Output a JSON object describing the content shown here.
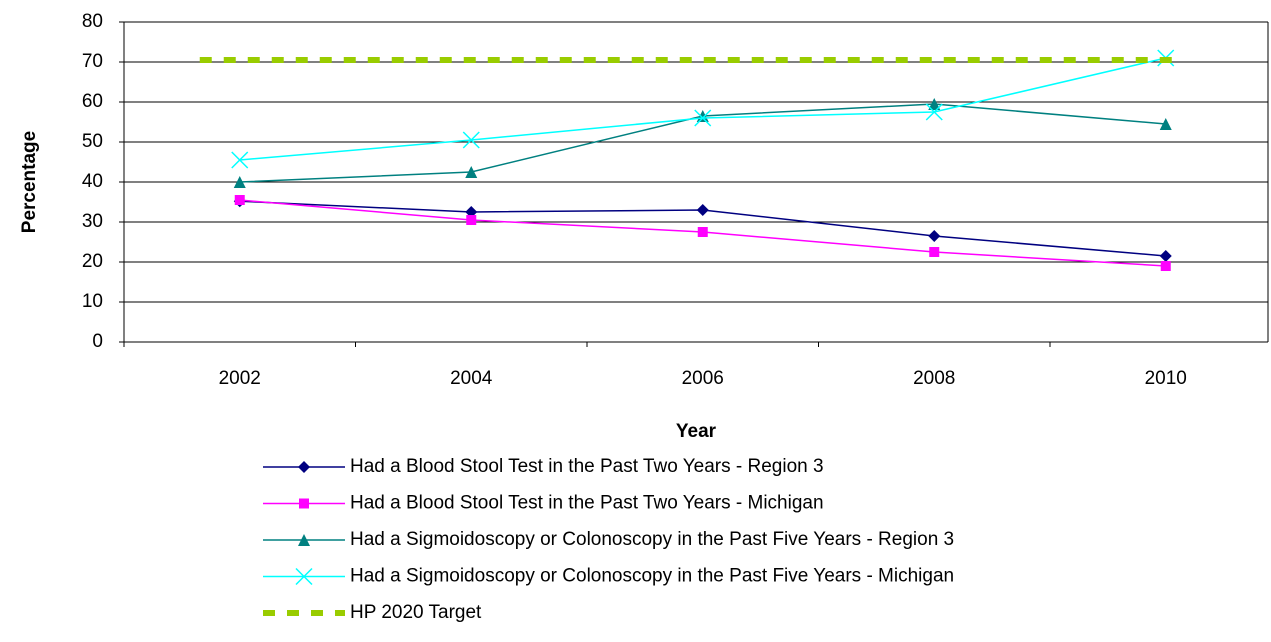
{
  "chart_data": {
    "type": "line",
    "x_label": "Year",
    "y_label": "Percentage",
    "categories": [
      "2002",
      "2004",
      "2006",
      "2008",
      "2010"
    ],
    "ylim": [
      0,
      80
    ],
    "yticks": [
      0,
      10,
      20,
      30,
      40,
      50,
      60,
      70,
      80
    ],
    "grid": true,
    "series": [
      {
        "name": "Had a Blood Stool Test in the Past Two Years - Region 3",
        "color": "#000080",
        "marker": "diamond",
        "values": [
          35.2,
          32.5,
          33,
          26.5,
          21.5
        ]
      },
      {
        "name": "Had a Blood Stool Test in the Past Two Years - Michigan",
        "color": "#ff00ff",
        "marker": "square",
        "values": [
          35.5,
          30.5,
          27.5,
          22.5,
          19
        ]
      },
      {
        "name": "Had a Sigmoidoscopy or Colonoscopy in the Past Five Years - Region 3",
        "color": "#008080",
        "marker": "triangle",
        "values": [
          40,
          42.5,
          56.5,
          59.5,
          54.5
        ]
      },
      {
        "name": "Had a Sigmoidoscopy or Colonoscopy in the Past Five Years - Michigan",
        "color": "#00ffff",
        "marker": "x",
        "values": [
          45.5,
          50.5,
          56,
          57.5,
          71
        ]
      },
      {
        "name": "HP 2020 Target",
        "color": "#99cc00",
        "marker": "none",
        "dashed": true,
        "values": [
          70.5,
          70.5,
          70.5,
          70.5,
          70.5
        ]
      }
    ]
  }
}
